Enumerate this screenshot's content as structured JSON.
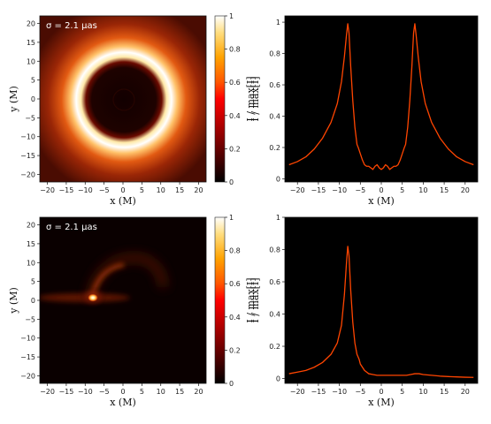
{
  "chart_data": [
    {
      "type": "heatmap",
      "panel": "top-left",
      "annotation": "σ = 2.1 μas",
      "xlabel": "x (M)",
      "ylabel": "y (M)",
      "xlim": [
        -22,
        22
      ],
      "ylim": [
        -22,
        22
      ],
      "xticks": [
        -20,
        -15,
        -10,
        -5,
        0,
        5,
        10,
        15,
        20
      ],
      "yticks": [
        -20,
        -15,
        -10,
        -5,
        0,
        5,
        10,
        15,
        20
      ],
      "colorbar": {
        "label": "I / max[I]",
        "range": [
          0,
          1
        ],
        "ticks": [
          0.0,
          0.2,
          0.4,
          0.6,
          0.8,
          1.0
        ],
        "colormap": "afmhot"
      },
      "feature": {
        "shape": "ring",
        "ring_radius": 8,
        "inner_shadow_radius": 5.5
      }
    },
    {
      "type": "line",
      "panel": "top-right",
      "xlabel": "x (M)",
      "ylabel": "I / max[I]",
      "xlim": [
        -23,
        23
      ],
      "ylim": [
        -0.02,
        1.04
      ],
      "xticks": [
        -20,
        -15,
        -10,
        -5,
        0,
        5,
        10,
        15,
        20
      ],
      "yticks": [
        0.0,
        0.2,
        0.4,
        0.6,
        0.8,
        1.0
      ],
      "line_color": "#ff4500",
      "x": [
        -22,
        -20,
        -18,
        -16,
        -14,
        -12,
        -10.5,
        -9.5,
        -8.8,
        -8.3,
        -8,
        -7.7,
        -7.3,
        -6.8,
        -6.3,
        -5.8,
        -5.5,
        -5,
        -4.5,
        -4,
        -3.5,
        -3,
        -2.5,
        -2,
        -1.5,
        -1,
        -0.5,
        0,
        0.5,
        1,
        1.5,
        2,
        2.5,
        3,
        3.5,
        4,
        4.5,
        5,
        5.5,
        5.8,
        6.3,
        6.8,
        7.3,
        7.7,
        8,
        8.3,
        8.8,
        9.5,
        10.5,
        12,
        14,
        16,
        18,
        20,
        22
      ],
      "y": [
        0.09,
        0.11,
        0.14,
        0.19,
        0.26,
        0.36,
        0.48,
        0.62,
        0.78,
        0.92,
        0.99,
        0.93,
        0.72,
        0.5,
        0.33,
        0.22,
        0.2,
        0.16,
        0.12,
        0.09,
        0.08,
        0.08,
        0.07,
        0.06,
        0.08,
        0.09,
        0.07,
        0.06,
        0.07,
        0.09,
        0.08,
        0.06,
        0.07,
        0.08,
        0.08,
        0.09,
        0.12,
        0.16,
        0.2,
        0.22,
        0.33,
        0.5,
        0.72,
        0.93,
        0.99,
        0.92,
        0.78,
        0.62,
        0.48,
        0.36,
        0.26,
        0.19,
        0.14,
        0.11,
        0.09
      ]
    },
    {
      "type": "heatmap",
      "panel": "bottom-left",
      "annotation": "σ = 2.1 μas",
      "xlabel": "x (M)",
      "ylabel": "y (M)",
      "xlim": [
        -22,
        22
      ],
      "ylim": [
        -22,
        22
      ],
      "xticks": [
        -20,
        -15,
        -10,
        -5,
        0,
        5,
        10,
        15,
        20
      ],
      "yticks": [
        -20,
        -15,
        -10,
        -5,
        0,
        5,
        10,
        15,
        20
      ],
      "colorbar": {
        "label": "I / max[I]",
        "range": [
          0,
          1
        ],
        "ticks": [
          0.0,
          0.2,
          0.4,
          0.6,
          0.8,
          1.0
        ],
        "colormap": "afmhot"
      },
      "feature": {
        "shape": "asymmetric crescent",
        "hotspot": [
          -7.5,
          0.5
        ]
      }
    },
    {
      "type": "line",
      "panel": "bottom-right",
      "xlabel": "x (M)",
      "ylabel": "I / max[I]",
      "xlim": [
        -23,
        23
      ],
      "ylim": [
        -0.03,
        1.0
      ],
      "xticks": [
        -20,
        -15,
        -10,
        -5,
        0,
        5,
        10,
        15,
        20
      ],
      "yticks": [
        0.0,
        0.2,
        0.4,
        0.6,
        0.8,
        1.0
      ],
      "line_color": "#ff4500",
      "x": [
        -22,
        -20,
        -18,
        -16,
        -14,
        -12,
        -10.5,
        -9.5,
        -8.8,
        -8.3,
        -8,
        -7.7,
        -7.3,
        -6.8,
        -6.3,
        -5.8,
        -5.3,
        -5,
        -4.5,
        -4,
        -3,
        -2,
        -1,
        0,
        2,
        4,
        6,
        7,
        8,
        9,
        10,
        12,
        14,
        16,
        18,
        20,
        22
      ],
      "y": [
        0.03,
        0.04,
        0.05,
        0.07,
        0.1,
        0.15,
        0.22,
        0.33,
        0.52,
        0.72,
        0.82,
        0.76,
        0.55,
        0.35,
        0.22,
        0.15,
        0.12,
        0.09,
        0.07,
        0.05,
        0.03,
        0.025,
        0.02,
        0.02,
        0.02,
        0.02,
        0.02,
        0.025,
        0.03,
        0.03,
        0.025,
        0.02,
        0.015,
        0.012,
        0.01,
        0.008,
        0.007
      ]
    }
  ]
}
